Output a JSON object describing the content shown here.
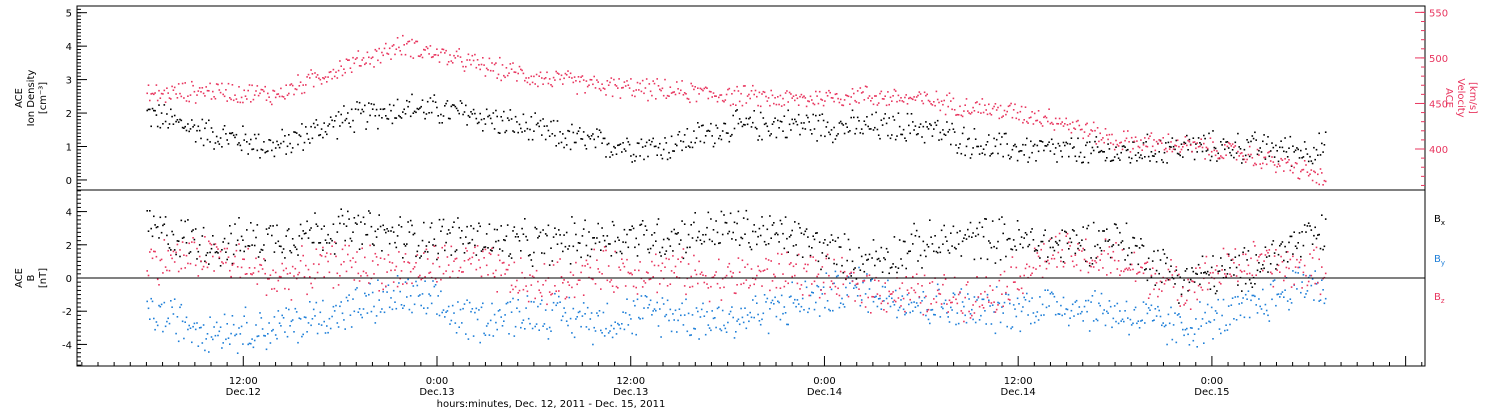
{
  "chart_data": [
    {
      "type": "scatter",
      "panel": "top",
      "ylabel_lines": [
        "ACE",
        "Ion Density",
        "[cm⁻³]"
      ],
      "ylim": [
        -0.3,
        5.2
      ],
      "yticks": [
        0,
        1,
        2,
        3,
        4,
        5
      ],
      "y2label_lines": [
        "ACE",
        "Velocity",
        "[km/s]"
      ],
      "y2lim": [
        355,
        557
      ],
      "y2ticks": [
        400,
        450,
        500,
        550
      ],
      "series": [
        {
          "key": "density",
          "color": "#000000",
          "axis": "left",
          "x": [
            0,
            4,
            8,
            12,
            16,
            20,
            24,
            28,
            32,
            36,
            40,
            44,
            48,
            52,
            56,
            60,
            64,
            68,
            72,
            73
          ],
          "y": [
            2.0,
            1.4,
            1.0,
            1.8,
            2.2,
            2.0,
            1.5,
            1.1,
            1.0,
            1.6,
            1.7,
            1.6,
            1.6,
            1.0,
            0.9,
            0.8,
            1.0,
            1.0,
            0.9,
            1.0
          ]
        },
        {
          "key": "velocity",
          "color": "#e8365f",
          "axis": "right",
          "x": [
            0,
            4,
            8,
            12,
            16,
            20,
            24,
            28,
            32,
            36,
            40,
            44,
            48,
            52,
            56,
            60,
            64,
            68,
            72,
            73
          ],
          "y": [
            460,
            465,
            460,
            490,
            515,
            495,
            480,
            470,
            465,
            460,
            455,
            460,
            455,
            445,
            435,
            410,
            405,
            395,
            375,
            365
          ]
        }
      ]
    },
    {
      "type": "scatter",
      "panel": "bottom",
      "ylabel_lines": [
        "ACE",
        "B",
        "[nT]"
      ],
      "ylim": [
        -5.3,
        5.3
      ],
      "yticks": [
        -4,
        -2,
        0,
        2,
        4
      ],
      "zero_line": true,
      "series": [
        {
          "name": "Bx",
          "color": "#000000",
          "x": [
            0,
            4,
            8,
            12,
            16,
            20,
            24,
            28,
            32,
            36,
            40,
            44,
            48,
            52,
            56,
            60,
            64,
            68,
            72,
            73
          ],
          "y": [
            3,
            2,
            2.5,
            3,
            2.5,
            2.5,
            2,
            2.5,
            2.5,
            3,
            2.5,
            1,
            2,
            2.5,
            2,
            2.5,
            0,
            0.5,
            2.5,
            2.5
          ]
        },
        {
          "name": "By",
          "color": "#1f7fd8",
          "x": [
            0,
            4,
            8,
            12,
            16,
            20,
            24,
            28,
            32,
            36,
            40,
            44,
            48,
            52,
            56,
            60,
            64,
            68,
            72,
            73
          ],
          "y": [
            -2,
            -3,
            -3,
            -2,
            -1,
            -2.5,
            -2,
            -2.5,
            -2,
            -2.5,
            -1.5,
            -0.5,
            -1.5,
            -2,
            -1.5,
            -2,
            -3,
            -2,
            0,
            -1
          ]
        },
        {
          "name": "Bz",
          "color": "#e8365f",
          "x": [
            0,
            4,
            8,
            12,
            16,
            20,
            24,
            28,
            32,
            36,
            40,
            44,
            48,
            52,
            56,
            60,
            64,
            68,
            72,
            73
          ],
          "y": [
            1,
            1.5,
            0,
            1,
            0.5,
            1,
            -0.5,
            0.5,
            0.5,
            0,
            0.5,
            -0.5,
            -1,
            -1,
            1.5,
            1,
            -0.5,
            1,
            0.5,
            0.5
          ]
        }
      ]
    }
  ],
  "x_axis": {
    "xlim": [
      -4.3,
      79.2
    ],
    "major_ticks": [
      {
        "x": 6,
        "time": "12:00",
        "date": "Dec.12"
      },
      {
        "x": 18,
        "time": "0:00",
        "date": "Dec.13"
      },
      {
        "x": 30,
        "time": "12:00",
        "date": "Dec.13"
      },
      {
        "x": 42,
        "time": "0:00",
        "date": "Dec.14"
      },
      {
        "x": 54,
        "time": "12:00",
        "date": "Dec.14"
      },
      {
        "x": 66,
        "time": "0:00",
        "date": "Dec.15"
      }
    ],
    "xlabel": "hours:minutes, Dec. 12, 2011 - Dec. 15, 2011"
  },
  "legend": [
    {
      "base": "B",
      "sub": "x",
      "color": "#000000"
    },
    {
      "base": "B",
      "sub": "y",
      "color": "#1f7fd8"
    },
    {
      "base": "B",
      "sub": "z",
      "color": "#e8365f"
    }
  ]
}
